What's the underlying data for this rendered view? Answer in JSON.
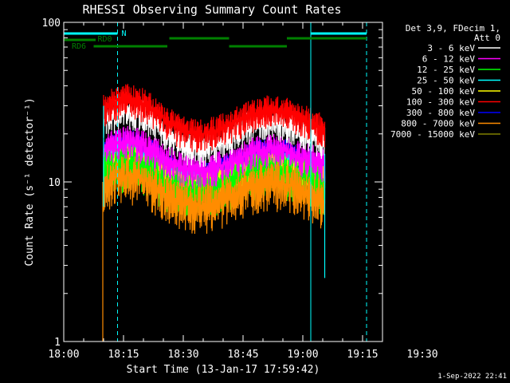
{
  "chart_data": {
    "type": "line",
    "title": "RHESSI Observing Summary Count Rates",
    "xlabel": "Start Time (13-Jan-17 17:59:42)",
    "ylabel": "Count Rate (s⁻¹ detector⁻¹)",
    "x_tick_labels": [
      "18:00",
      "18:15",
      "18:30",
      "18:45",
      "19:00",
      "19:15",
      "19:30"
    ],
    "y_tick_labels": [
      "1",
      "10",
      "100"
    ],
    "yscale": "log",
    "xlim_minutes_after_1800": [
      0,
      80
    ],
    "ylim": [
      1,
      100
    ],
    "legend_placement": "top-right outside",
    "legend_header": [
      "Det 3,9, FDecim 1,",
      "Att 0"
    ],
    "date_stamp": "1-Sep-2022 22:41",
    "attenuator_bars": [
      {
        "label": "N",
        "color": "#00ffff"
      },
      {
        "label": "RD0",
        "color": "#008000"
      },
      {
        "label": "RD6",
        "color": "#008000"
      }
    ],
    "data_window_minutes": [
      10,
      65.5
    ],
    "dashed_markers_minutes": [
      13.5,
      76
    ],
    "solid_markers_minutes": [
      62
    ],
    "series": [
      {
        "name": "3 - 6 keV",
        "color": "#ffffff",
        "peak1": 28,
        "trough": 17,
        "peak2": 24,
        "end": 17
      },
      {
        "name": "6 - 12 keV",
        "color": "#ff00ff",
        "peak1": 18,
        "trough": 12.5,
        "peak2": 16,
        "end": 13
      },
      {
        "name": "12 - 25 keV",
        "color": "#00ff00",
        "peak1": 13,
        "trough": 9,
        "peak2": 12,
        "end": 9
      },
      {
        "name": "25 - 50 keV",
        "color": "#00ffff",
        "peak1": 15,
        "trough": 10.5,
        "peak2": 13,
        "end": 10
      },
      {
        "name": "50 - 100 keV",
        "color": "#ffff00",
        "peak1": 14.5,
        "trough": 10,
        "peak2": 13,
        "end": 10
      },
      {
        "name": "100 - 300 keV",
        "color": "#ff0000",
        "peak1": 33,
        "trough": 21,
        "peak2": 28,
        "end": 20
      },
      {
        "name": "300 - 800 keV",
        "color": "#0000ff",
        "peak1": 17,
        "trough": 11,
        "peak2": 15.5,
        "end": 11
      },
      {
        "name": "800 - 7000 keV",
        "color": "#ff8c00",
        "peak1": 11,
        "trough": 7.5,
        "peak2": 10,
        "end": 7
      },
      {
        "name": "7000 - 15000 keV",
        "color": "#808000",
        "peak1": 12,
        "trough": 8.5,
        "peak2": 11,
        "end": 8
      }
    ]
  }
}
